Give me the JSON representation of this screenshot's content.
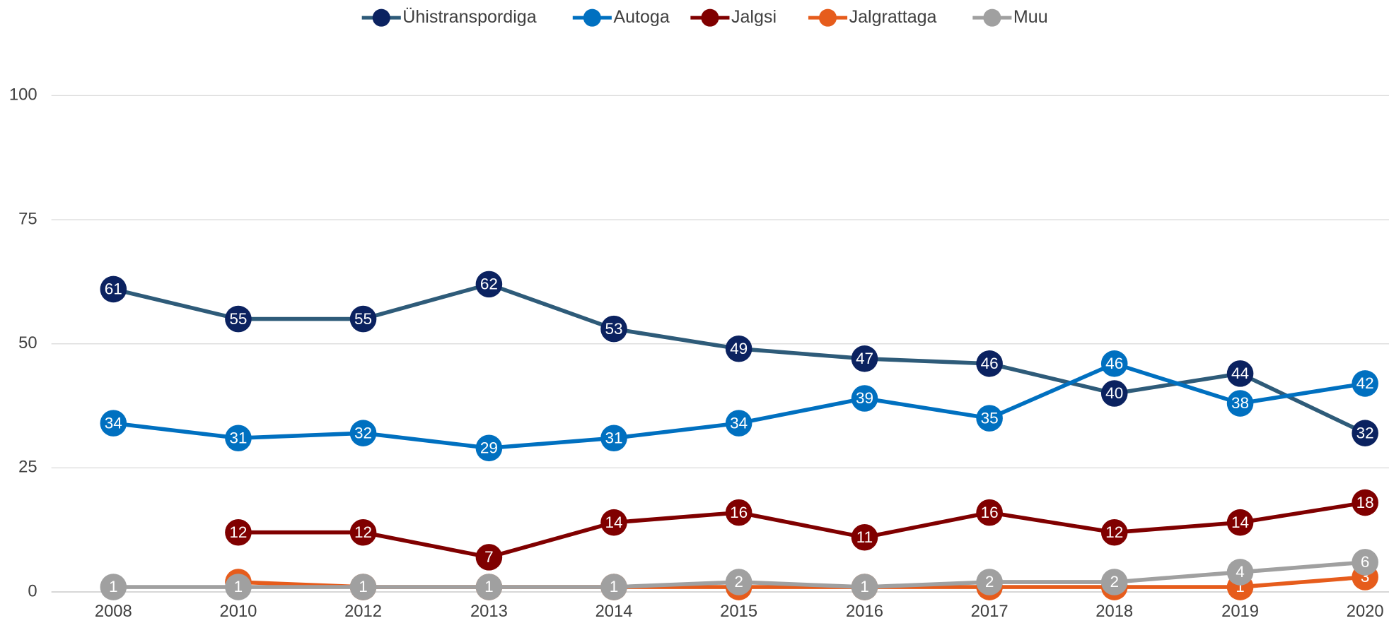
{
  "chart_data": {
    "type": "line",
    "categories": [
      "2008",
      "2010",
      "2012",
      "2013",
      "2014",
      "2015",
      "2016",
      "2017",
      "2018",
      "2019",
      "2020"
    ],
    "series": [
      {
        "name": "Ühistranspordiga",
        "color": "#0b2260",
        "line_color": "#2e5b79",
        "values": [
          61,
          55,
          55,
          62,
          53,
          49,
          47,
          46,
          40,
          44,
          32
        ]
      },
      {
        "name": "Autoga",
        "color": "#0070c0",
        "values": [
          34,
          31,
          32,
          29,
          31,
          34,
          39,
          35,
          46,
          38,
          42
        ]
      },
      {
        "name": "Jalgsi",
        "color": "#800000",
        "values": [
          null,
          12,
          12,
          7,
          14,
          16,
          11,
          16,
          12,
          14,
          18
        ]
      },
      {
        "name": "Jalgrattaga",
        "color": "#e65c1c",
        "values": [
          null,
          2,
          1,
          1,
          1,
          1,
          1,
          1,
          1,
          1,
          3
        ]
      },
      {
        "name": "Muu",
        "color": "#a0a0a0",
        "values": [
          1,
          1,
          1,
          1,
          1,
          2,
          1,
          2,
          2,
          4,
          6
        ]
      }
    ],
    "ylim": [
      0,
      100
    ],
    "yticks": [
      0,
      25,
      50,
      75,
      100
    ],
    "grid": true,
    "legend": "top"
  }
}
